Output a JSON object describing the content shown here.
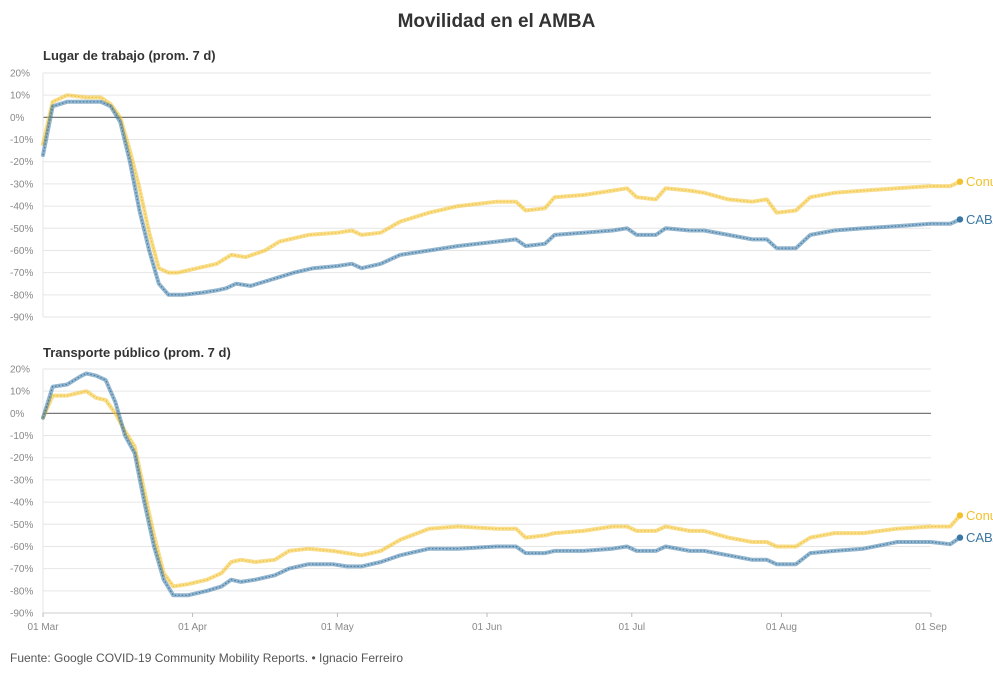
{
  "title": "Movilidad en el AMBA",
  "footer": "Fuente: Google COVID-19 Community Mobility Reports. • Ignacio Ferreiro",
  "colors": {
    "conurbano": "#f2c12e",
    "caba": "#3a78a5",
    "zero": "#777777",
    "grid": "#e6e6e6"
  },
  "chart_data": [
    {
      "type": "line",
      "title": "Lugar de trabajo (prom. 7 d)",
      "ylim": [
        -90,
        20
      ],
      "yticks": [
        "20%",
        "10%",
        "0%",
        "-10%",
        "-20%",
        "-30%",
        "-40%",
        "-50%",
        "-60%",
        "-70%",
        "-80%",
        "-90%"
      ],
      "xticks": [
        "01 Mar",
        "01 Apr",
        "01 May",
        "01 Jun",
        "01 Jul",
        "01 Aug",
        "01 Sep"
      ],
      "x_dates": [
        "2020-03-01",
        "2020-04-01",
        "2020-05-01",
        "2020-06-01",
        "2020-07-01",
        "2020-08-01",
        "2020-09-01"
      ],
      "xlim": [
        "2020-03-01",
        "2020-09-01"
      ],
      "series": [
        {
          "name": "Conurbano",
          "color": "#f2c12e",
          "points": [
            [
              "2020-03-01",
              -12
            ],
            [
              "2020-03-03",
              7
            ],
            [
              "2020-03-06",
              10
            ],
            [
              "2020-03-10",
              9
            ],
            [
              "2020-03-13",
              9
            ],
            [
              "2020-03-15",
              6
            ],
            [
              "2020-03-17",
              0
            ],
            [
              "2020-03-19",
              -15
            ],
            [
              "2020-03-21",
              -32
            ],
            [
              "2020-03-23",
              -52
            ],
            [
              "2020-03-25",
              -68
            ],
            [
              "2020-03-27",
              -70
            ],
            [
              "2020-03-29",
              -70
            ],
            [
              "2020-04-02",
              -68
            ],
            [
              "2020-04-06",
              -66
            ],
            [
              "2020-04-09",
              -62
            ],
            [
              "2020-04-12",
              -63
            ],
            [
              "2020-04-16",
              -60
            ],
            [
              "2020-04-19",
              -56
            ],
            [
              "2020-04-25",
              -53
            ],
            [
              "2020-05-01",
              -52
            ],
            [
              "2020-05-04",
              -51
            ],
            [
              "2020-05-06",
              -53
            ],
            [
              "2020-05-10",
              -52
            ],
            [
              "2020-05-14",
              -47
            ],
            [
              "2020-05-20",
              -43
            ],
            [
              "2020-05-26",
              -40
            ],
            [
              "2020-06-03",
              -38
            ],
            [
              "2020-06-07",
              -38
            ],
            [
              "2020-06-09",
              -42
            ],
            [
              "2020-06-13",
              -41
            ],
            [
              "2020-06-15",
              -36
            ],
            [
              "2020-06-21",
              -35
            ],
            [
              "2020-06-27",
              -33
            ],
            [
              "2020-06-30",
              -32
            ],
            [
              "2020-07-02",
              -36
            ],
            [
              "2020-07-06",
              -37
            ],
            [
              "2020-07-08",
              -32
            ],
            [
              "2020-07-13",
              -33
            ],
            [
              "2020-07-16",
              -34
            ],
            [
              "2020-07-21",
              -37
            ],
            [
              "2020-07-26",
              -38
            ],
            [
              "2020-07-29",
              -37
            ],
            [
              "2020-07-31",
              -43
            ],
            [
              "2020-08-04",
              -42
            ],
            [
              "2020-08-07",
              -36
            ],
            [
              "2020-08-12",
              -34
            ],
            [
              "2020-08-18",
              -33
            ],
            [
              "2020-08-25",
              -32
            ],
            [
              "2020-09-01",
              -31
            ],
            [
              "2020-09-05",
              -31
            ],
            [
              "2020-09-07",
              -29
            ]
          ]
        },
        {
          "name": "CABA",
          "color": "#3a78a5",
          "points": [
            [
              "2020-03-01",
              -17
            ],
            [
              "2020-03-03",
              5
            ],
            [
              "2020-03-06",
              7
            ],
            [
              "2020-03-10",
              7
            ],
            [
              "2020-03-13",
              7
            ],
            [
              "2020-03-15",
              5
            ],
            [
              "2020-03-17",
              -2
            ],
            [
              "2020-03-19",
              -20
            ],
            [
              "2020-03-21",
              -42
            ],
            [
              "2020-03-23",
              -60
            ],
            [
              "2020-03-25",
              -75
            ],
            [
              "2020-03-27",
              -80
            ],
            [
              "2020-03-30",
              -80
            ],
            [
              "2020-04-03",
              -79
            ],
            [
              "2020-04-06",
              -78
            ],
            [
              "2020-04-08",
              -77
            ],
            [
              "2020-04-10",
              -75
            ],
            [
              "2020-04-13",
              -76
            ],
            [
              "2020-04-16",
              -74
            ],
            [
              "2020-04-19",
              -72
            ],
            [
              "2020-04-22",
              -70
            ],
            [
              "2020-04-26",
              -68
            ],
            [
              "2020-05-01",
              -67
            ],
            [
              "2020-05-04",
              -66
            ],
            [
              "2020-05-06",
              -68
            ],
            [
              "2020-05-10",
              -66
            ],
            [
              "2020-05-14",
              -62
            ],
            [
              "2020-05-20",
              -60
            ],
            [
              "2020-05-26",
              -58
            ],
            [
              "2020-06-03",
              -56
            ],
            [
              "2020-06-07",
              -55
            ],
            [
              "2020-06-09",
              -58
            ],
            [
              "2020-06-13",
              -57
            ],
            [
              "2020-06-15",
              -53
            ],
            [
              "2020-06-21",
              -52
            ],
            [
              "2020-06-27",
              -51
            ],
            [
              "2020-06-30",
              -50
            ],
            [
              "2020-07-02",
              -53
            ],
            [
              "2020-07-06",
              -53
            ],
            [
              "2020-07-08",
              -50
            ],
            [
              "2020-07-13",
              -51
            ],
            [
              "2020-07-16",
              -51
            ],
            [
              "2020-07-21",
              -53
            ],
            [
              "2020-07-26",
              -55
            ],
            [
              "2020-07-29",
              -55
            ],
            [
              "2020-07-31",
              -59
            ],
            [
              "2020-08-04",
              -59
            ],
            [
              "2020-08-07",
              -53
            ],
            [
              "2020-08-12",
              -51
            ],
            [
              "2020-08-18",
              -50
            ],
            [
              "2020-08-25",
              -49
            ],
            [
              "2020-09-01",
              -48
            ],
            [
              "2020-09-05",
              -48
            ],
            [
              "2020-09-07",
              -46
            ]
          ]
        }
      ]
    },
    {
      "type": "line",
      "title": "Transporte público (prom. 7 d)",
      "ylim": [
        -90,
        20
      ],
      "yticks": [
        "20%",
        "10%",
        "0%",
        "-10%",
        "-20%",
        "-30%",
        "-40%",
        "-50%",
        "-60%",
        "-70%",
        "-80%",
        "-90%"
      ],
      "xticks": [
        "01 Mar",
        "01 Apr",
        "01 May",
        "01 Jun",
        "01 Jul",
        "01 Aug",
        "01 Sep"
      ],
      "x_dates": [
        "2020-03-01",
        "2020-04-01",
        "2020-05-01",
        "2020-06-01",
        "2020-07-01",
        "2020-08-01",
        "2020-09-01"
      ],
      "xlim": [
        "2020-03-01",
        "2020-09-01"
      ],
      "series": [
        {
          "name": "Conurbano",
          "color": "#f2c12e",
          "points": [
            [
              "2020-03-01",
              -2
            ],
            [
              "2020-03-03",
              8
            ],
            [
              "2020-03-06",
              8
            ],
            [
              "2020-03-10",
              10
            ],
            [
              "2020-03-12",
              7
            ],
            [
              "2020-03-14",
              6
            ],
            [
              "2020-03-16",
              0
            ],
            [
              "2020-03-18",
              -8
            ],
            [
              "2020-03-20",
              -15
            ],
            [
              "2020-03-22",
              -35
            ],
            [
              "2020-03-24",
              -55
            ],
            [
              "2020-03-26",
              -72
            ],
            [
              "2020-03-28",
              -78
            ],
            [
              "2020-03-31",
              -77
            ],
            [
              "2020-04-04",
              -75
            ],
            [
              "2020-04-07",
              -72
            ],
            [
              "2020-04-09",
              -67
            ],
            [
              "2020-04-11",
              -66
            ],
            [
              "2020-04-14",
              -67
            ],
            [
              "2020-04-18",
              -66
            ],
            [
              "2020-04-21",
              -62
            ],
            [
              "2020-04-25",
              -61
            ],
            [
              "2020-04-30",
              -62
            ],
            [
              "2020-05-03",
              -63
            ],
            [
              "2020-05-06",
              -64
            ],
            [
              "2020-05-10",
              -62
            ],
            [
              "2020-05-14",
              -57
            ],
            [
              "2020-05-20",
              -52
            ],
            [
              "2020-05-26",
              -51
            ],
            [
              "2020-06-03",
              -52
            ],
            [
              "2020-06-07",
              -52
            ],
            [
              "2020-06-09",
              -56
            ],
            [
              "2020-06-13",
              -55
            ],
            [
              "2020-06-15",
              -54
            ],
            [
              "2020-06-21",
              -53
            ],
            [
              "2020-06-27",
              -51
            ],
            [
              "2020-06-30",
              -51
            ],
            [
              "2020-07-02",
              -53
            ],
            [
              "2020-07-06",
              -53
            ],
            [
              "2020-07-08",
              -51
            ],
            [
              "2020-07-13",
              -53
            ],
            [
              "2020-07-16",
              -53
            ],
            [
              "2020-07-21",
              -56
            ],
            [
              "2020-07-26",
              -58
            ],
            [
              "2020-07-29",
              -58
            ],
            [
              "2020-07-31",
              -60
            ],
            [
              "2020-08-04",
              -60
            ],
            [
              "2020-08-07",
              -56
            ],
            [
              "2020-08-12",
              -54
            ],
            [
              "2020-08-18",
              -54
            ],
            [
              "2020-08-25",
              -52
            ],
            [
              "2020-09-01",
              -51
            ],
            [
              "2020-09-05",
              -51
            ],
            [
              "2020-09-07",
              -46
            ]
          ]
        },
        {
          "name": "CABA",
          "color": "#3a78a5",
          "points": [
            [
              "2020-03-01",
              -2
            ],
            [
              "2020-03-03",
              12
            ],
            [
              "2020-03-06",
              13
            ],
            [
              "2020-03-09",
              17
            ],
            [
              "2020-03-10",
              18
            ],
            [
              "2020-03-12",
              17
            ],
            [
              "2020-03-14",
              15
            ],
            [
              "2020-03-16",
              5
            ],
            [
              "2020-03-18",
              -10
            ],
            [
              "2020-03-20",
              -18
            ],
            [
              "2020-03-22",
              -40
            ],
            [
              "2020-03-24",
              -60
            ],
            [
              "2020-03-26",
              -75
            ],
            [
              "2020-03-28",
              -82
            ],
            [
              "2020-03-31",
              -82
            ],
            [
              "2020-04-04",
              -80
            ],
            [
              "2020-04-07",
              -78
            ],
            [
              "2020-04-09",
              -75
            ],
            [
              "2020-04-11",
              -76
            ],
            [
              "2020-04-14",
              -75
            ],
            [
              "2020-04-18",
              -73
            ],
            [
              "2020-04-21",
              -70
            ],
            [
              "2020-04-25",
              -68
            ],
            [
              "2020-04-30",
              -68
            ],
            [
              "2020-05-03",
              -69
            ],
            [
              "2020-05-06",
              -69
            ],
            [
              "2020-05-10",
              -67
            ],
            [
              "2020-05-14",
              -64
            ],
            [
              "2020-05-20",
              -61
            ],
            [
              "2020-05-26",
              -61
            ],
            [
              "2020-06-03",
              -60
            ],
            [
              "2020-06-07",
              -60
            ],
            [
              "2020-06-09",
              -63
            ],
            [
              "2020-06-13",
              -63
            ],
            [
              "2020-06-15",
              -62
            ],
            [
              "2020-06-21",
              -62
            ],
            [
              "2020-06-27",
              -61
            ],
            [
              "2020-06-30",
              -60
            ],
            [
              "2020-07-02",
              -62
            ],
            [
              "2020-07-06",
              -62
            ],
            [
              "2020-07-08",
              -60
            ],
            [
              "2020-07-13",
              -62
            ],
            [
              "2020-07-16",
              -62
            ],
            [
              "2020-07-21",
              -64
            ],
            [
              "2020-07-26",
              -66
            ],
            [
              "2020-07-29",
              -66
            ],
            [
              "2020-07-31",
              -68
            ],
            [
              "2020-08-04",
              -68
            ],
            [
              "2020-08-07",
              -63
            ],
            [
              "2020-08-12",
              -62
            ],
            [
              "2020-08-18",
              -61
            ],
            [
              "2020-08-25",
              -58
            ],
            [
              "2020-09-01",
              -58
            ],
            [
              "2020-09-05",
              -59
            ],
            [
              "2020-09-07",
              -56
            ]
          ]
        }
      ]
    }
  ]
}
